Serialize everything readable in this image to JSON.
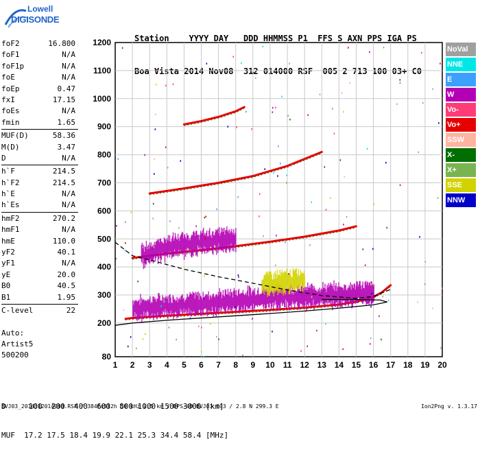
{
  "logo": {
    "line1": "Lowell",
    "line2": "DIGISONDE"
  },
  "header": {
    "line1": "Station    YYYY DAY   DDD HHMMSS P1  FFS S AXN PPS IGA PS",
    "line2": "Boa Vista 2014 Nov08  312 014000 RSF  005 2 713 100 03+ C0"
  },
  "params": [
    {
      "name": "foF2",
      "value": "16.800"
    },
    {
      "name": "foF1",
      "value": "N/A"
    },
    {
      "name": "foF1p",
      "value": "N/A"
    },
    {
      "name": "foE",
      "value": "N/A"
    },
    {
      "name": "foEp",
      "value": "0.47"
    },
    {
      "name": "fxI",
      "value": "17.15"
    },
    {
      "name": "foEs",
      "value": "N/A"
    },
    {
      "name": "fmin",
      "value": "1.65"
    },
    {
      "name": "MUF(D)",
      "value": "58.36"
    },
    {
      "name": "M(D)",
      "value": "3.47"
    },
    {
      "name": "D",
      "value": "N/A"
    },
    {
      "name": "h`F",
      "value": "214.5"
    },
    {
      "name": "h`F2",
      "value": "214.5"
    },
    {
      "name": "h`E",
      "value": "N/A"
    },
    {
      "name": "h`Es",
      "value": "N/A"
    },
    {
      "name": "hmF2",
      "value": "270.2"
    },
    {
      "name": "hmF1",
      "value": "N/A"
    },
    {
      "name": "hmE",
      "value": "110.0"
    },
    {
      "name": "yF2",
      "value": "40.1"
    },
    {
      "name": "yF1",
      "value": "N/A"
    },
    {
      "name": "yE",
      "value": "20.0"
    },
    {
      "name": "B0",
      "value": "40.5"
    },
    {
      "name": "B1",
      "value": "1.95"
    },
    {
      "name": "C-level",
      "value": "22"
    }
  ],
  "auto": {
    "line1": "Auto:",
    "line2": "Artist5",
    "line3": "500200"
  },
  "legend": [
    {
      "label": "NoVal",
      "color": "#a0a0a0"
    },
    {
      "label": "NNE",
      "color": "#00e6e6"
    },
    {
      "label": "E",
      "color": "#3ca0ff"
    },
    {
      "label": "W",
      "color": "#b400b4"
    },
    {
      "label": "Vo-",
      "color": "#ff3c78"
    },
    {
      "label": "Vo+",
      "color": "#e60000"
    },
    {
      "label": "SSW",
      "color": "#ffb4a0"
    },
    {
      "label": "X-",
      "color": "#006e00"
    },
    {
      "label": "X+",
      "color": "#78b450"
    },
    {
      "label": "SSE",
      "color": "#d2d200"
    },
    {
      "label": "NNW",
      "color": "#0000c8"
    }
  ],
  "footer": {
    "d_line": "D     100  200  400  600  800 1000 1500 3000 [km]",
    "muf_line": "MUF  17.2 17.5 18.4 19.9 22.1 25.3 34.4 58.4 [MHz]",
    "info": "BVJ03_2014312014000.RSF / 384fx512h 50 kHz 2.5 km / DPS-4D BVJ03 003 / 2.8 N 299.3 E",
    "version": "Ion2Png v. 1.3.17"
  },
  "chart_data": {
    "type": "scatter",
    "title": "",
    "xlabel": "",
    "ylabel": "",
    "xlim": [
      1,
      20
    ],
    "ylim": [
      80,
      1200
    ],
    "x_ticks": [
      1,
      2,
      3,
      4,
      5,
      6,
      7,
      8,
      9,
      10,
      11,
      12,
      13,
      14,
      15,
      16,
      17,
      18,
      19,
      20
    ],
    "y_ticks": [
      80,
      200,
      300,
      400,
      500,
      600,
      700,
      800,
      900,
      1000,
      1100,
      1200
    ],
    "grid": true,
    "series": [
      {
        "name": "Vo+",
        "color": "#e60000",
        "kind": "trace",
        "x": [
          1.6,
          2,
          4,
          6,
          8,
          10,
          12,
          14,
          15,
          16,
          16.5,
          17
        ],
        "y": [
          215,
          218,
          226,
          233,
          240,
          247,
          255,
          266,
          276,
          293,
          310,
          335
        ]
      },
      {
        "name": "Vo+",
        "color": "#e60000",
        "kind": "trace",
        "x": [
          2,
          4,
          6,
          8,
          10,
          12,
          14,
          15
        ],
        "y": [
          432,
          448,
          460,
          474,
          490,
          508,
          530,
          545
        ]
      },
      {
        "name": "Vo+",
        "color": "#e60000",
        "kind": "trace",
        "x": [
          3,
          5,
          7,
          9,
          11,
          13
        ],
        "y": [
          662,
          680,
          700,
          724,
          760,
          810
        ]
      },
      {
        "name": "Vo+",
        "color": "#e60000",
        "kind": "trace",
        "x": [
          5,
          6,
          7,
          8,
          8.5
        ],
        "y": [
          908,
          920,
          935,
          955,
          970
        ]
      },
      {
        "name": "W",
        "color": "#b400b4",
        "kind": "band",
        "x": [
          2,
          4,
          6,
          8,
          10,
          12,
          14,
          15,
          16
        ],
        "y": [
          250,
          260,
          268,
          280,
          290,
          295,
          300,
          305,
          310
        ]
      },
      {
        "name": "W",
        "color": "#b400b4",
        "kind": "band",
        "x": [
          2.5,
          4,
          6,
          7,
          8
        ],
        "y": [
          440,
          470,
          488,
          495,
          500
        ]
      },
      {
        "name": "SSE",
        "color": "#d2d200",
        "kind": "band",
        "x": [
          9.5,
          10.5,
          11.5,
          12
        ],
        "y": [
          340,
          345,
          350,
          352
        ]
      },
      {
        "name": "profile-solid",
        "color": "#000000",
        "kind": "line",
        "x": [
          1,
          2,
          4,
          6,
          8,
          10,
          12,
          14,
          16,
          16.8,
          16.4,
          15,
          13
        ],
        "y": [
          192,
          200,
          210,
          218,
          226,
          234,
          243,
          253,
          265,
          275,
          282,
          284,
          284
        ]
      },
      {
        "name": "profile-dashed",
        "color": "#000000",
        "kind": "dashed",
        "x": [
          1,
          2,
          3,
          5,
          7,
          9,
          11,
          13,
          15,
          16,
          17
        ],
        "y": [
          488,
          440,
          425,
          392,
          365,
          342,
          318,
          298,
          288,
          295,
          320
        ]
      }
    ]
  }
}
